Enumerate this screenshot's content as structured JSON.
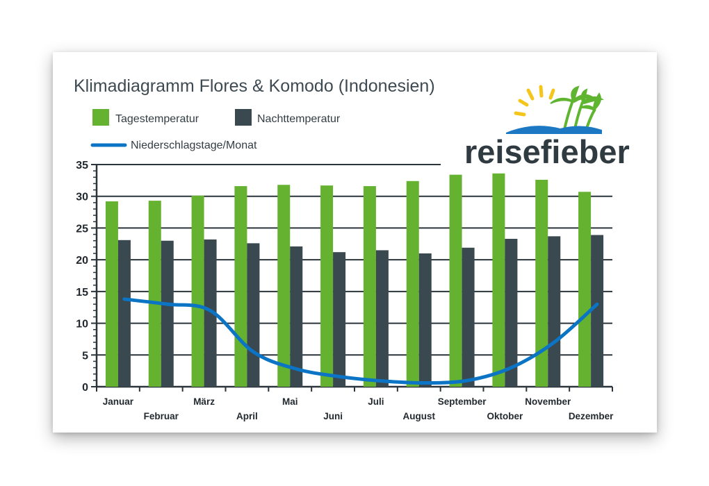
{
  "chart_data": {
    "type": "bar",
    "title": "Klimadiagramm Flores & Komodo (Indonesien)",
    "categories": [
      "Januar",
      "Februar",
      "März",
      "April",
      "Mai",
      "Juni",
      "Juli",
      "August",
      "September",
      "Oktober",
      "November",
      "Dezember"
    ],
    "series": [
      {
        "name": "Tagestemperatur",
        "type": "bar",
        "color": "#64b22f",
        "values": [
          29.2,
          29.3,
          30.1,
          31.6,
          31.8,
          31.7,
          31.6,
          32.4,
          33.4,
          33.6,
          32.6,
          30.7
        ]
      },
      {
        "name": "Nachttemperatur",
        "type": "bar",
        "color": "#3a4850",
        "values": [
          23.1,
          23.0,
          23.2,
          22.6,
          22.1,
          21.2,
          21.5,
          21.0,
          21.9,
          23.3,
          23.7,
          23.9
        ]
      },
      {
        "name": "Niederschlagstage/Monat",
        "type": "line",
        "color": "#0b74c4",
        "values": [
          13.8,
          13.0,
          12.0,
          5.5,
          2.8,
          1.6,
          0.9,
          0.6,
          1.0,
          3.0,
          7.0,
          13.0
        ]
      }
    ],
    "yticks": [
      "0",
      "5",
      "10",
      "15",
      "20",
      "25",
      "30",
      "35"
    ],
    "ylim": [
      0,
      35
    ],
    "grid": true,
    "legend_position": "top-left"
  },
  "logo": {
    "text": "reisefieber",
    "sun_color": "#f4c61c",
    "palm_color": "#5fb530",
    "wave_color": "#1d78c4"
  }
}
